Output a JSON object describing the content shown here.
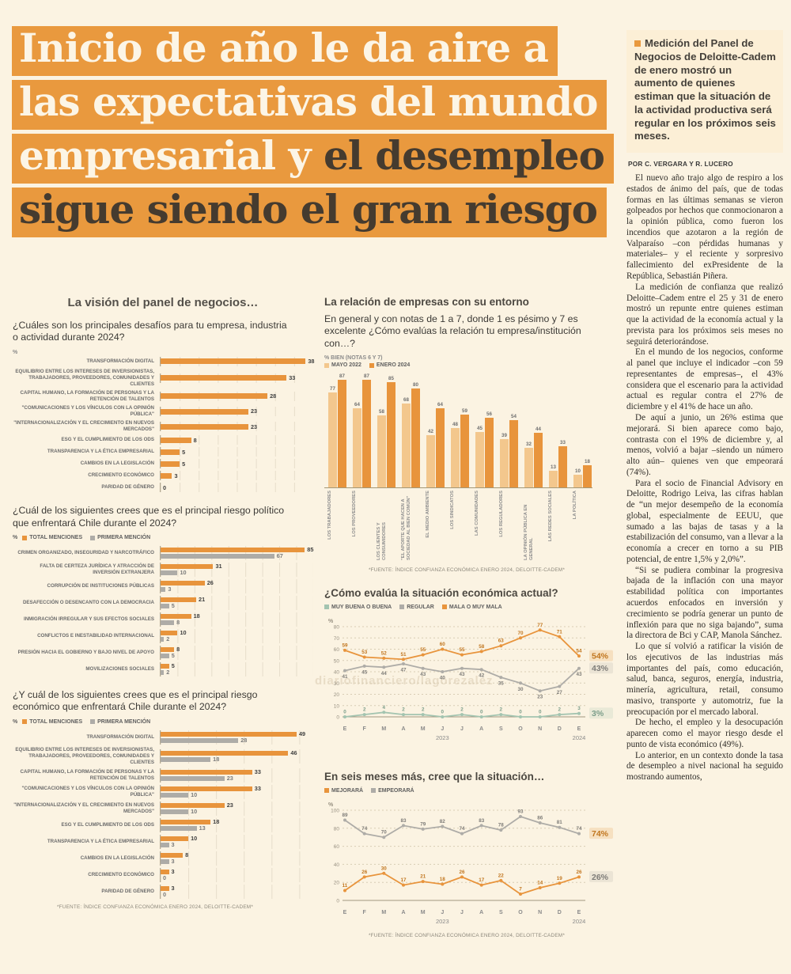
{
  "headline": {
    "line1": "Inicio de año le da aire a",
    "line2": "las expectativas del mundo",
    "line3_light": "empresarial y",
    "line3_dark": " el desempleo",
    "line4": "sigue siendo el gran riesgo"
  },
  "watermark": "diariofinanciero/lagorezalez",
  "sidebar": {
    "intro": "Medición del Panel de Negocios de Deloitte-Cadem de enero mostró un aumento de quienes estiman que la situación de la actividad productiva será regular en los próximos seis meses.",
    "byline": "POR C. VERGARA Y R. LUCERO",
    "paragraphs": [
      "El nuevo año trajo algo de respiro a los estados de ánimo del país, que de todas formas en las últimas semanas se vieron golpeados por hechos que conmocionaron a la opinión pública, como fueron los incendios que azotaron a la región de Valparaíso –con pérdidas humanas y materiales– y el reciente y sorpresivo fallecimiento del exPresidente de la República, Sebastián Piñera.",
      "La medición de confianza que realizó Deloitte–Cadem entre el 25 y 31 de enero mostró un repunte entre quienes estiman que la actividad de la economía actual y la prevista para los próximos seis meses no seguirá deteriorándose.",
      "En el mundo de los negocios, conforme al panel que incluye el indicador –con 59 representantes de empresas–, el 43% considera que el escenario para la actividad actual es regular contra el 27% de diciembre y el 41% de hace un año.",
      "De aquí a junio, un 26% estima que mejorará. Si bien aparece como bajo, contrasta con el 19% de diciembre y, al menos, volvió a bajar –siendo un número alto aún– quienes ven que empeorará (74%).",
      "Para el socio de Financial Advisory en Deloitte, Rodrigo Leiva, las cifras hablan de “un mejor desempeño de la economía global, especialmente de EEUU, que sumado a las bajas de tasas y a la estabilización del consumo, van a llevar a la economía a crecer en torno a su PIB potencial, de entre 1,5% y 2,0%”.",
      "“Si se pudiera combinar la progresiva bajada de la inflación con una mayor estabilidad política con importantes acuerdos enfocados en inversión y crecimiento se podría generar un punto de inflexión para que no siga bajando”, suma la directora de Bci y CAP, Manola Sánchez.",
      "Lo que sí volvió a ratificar la visión de los ejecutivos de las industrias más importantes del país, como educación, salud, banca, seguros, energía, industria, minería, agricultura, retail, consumo masivo, transporte y automotriz, fue la preocupación por el mercado laboral.",
      "De hecho, el empleo y la desocupación aparecen como el mayor riesgo desde el punto de vista económico (49%).",
      "Lo anterior, en un contexto donde la tasa de desempleo a nivel nacional ha seguido mostrando aumentos,"
    ]
  },
  "palette": {
    "orange": "#E8943C",
    "orange_text": "#C1761F",
    "light_orange": "#F3C78D",
    "light_orange_text": "#B98F4F",
    "gray": "#AEACA7",
    "gray_text": "#7E7C78",
    "green": "#A3C4B0",
    "green_text": "#7C9E8A",
    "headline_bg": "#E9993E",
    "page_bg": "#FBF3E2"
  },
  "chart_data": [
    {
      "id": "panel-desafios",
      "type": "bar",
      "title": "La visión del panel de negocios…",
      "question": "¿Cuáles son los principales desafíos para tu empresa, industria o actividad durante 2024?",
      "unit": "%",
      "xmax": 40,
      "grid_step": 5,
      "categories": [
        "TRANSFORMACIÓN DIGITAL",
        "EQUILIBRIO ENTRE LOS INTERESES DE INVERSIONISTAS, TRABAJADORES, PROVEEDORES, COMUNIDADES Y CLIENTES",
        "CAPITAL HUMANO, LA FORMACIÓN DE PERSONAS Y LA RETENCIÓN DE TALENTOS",
        "\"COMUNICACIONES Y LOS VÍNCULOS CON LA OPINIÓN PÚBLICA\"",
        "\"INTERNACIONALIZACIÓN Y EL CRECIMIENTO EN NUEVOS MERCADOS\"",
        "ESG Y EL CUMPLIMIENTO DE LOS ODS",
        "TRANSPARENCIA Y LA ÉTICA EMPRESARIAL",
        "CAMBIOS EN LA LEGISLACIÓN",
        "CRECIMIENTO ECONÓMICO",
        "PARIDAD DE GÉNERO"
      ],
      "values": [
        38,
        33,
        28,
        23,
        23,
        8,
        5,
        5,
        3,
        0
      ]
    },
    {
      "id": "riesgo-politico",
      "type": "bar",
      "question": "¿Cuál de los siguientes crees que es el principal riesgo político que enfrentará Chile durante el 2024?",
      "unit": "%",
      "xmax": 90,
      "grid_step": 10,
      "categories": [
        "CRIMEN ORGANIZADO, INSEGURIDAD Y NARCOTRÁFICO",
        "FALTA DE CERTEZA JURÍDICA Y ATRACCIÓN DE INVERSIÓN EXTRANJERA",
        "CORRUPCIÓN DE INSTITUCIONES PÚBLICAS",
        "DESAFECCIÓN O DESENCANTO CON LA DEMOCRACIA",
        "INMIGRACIÓN IRREGULAR Y SUS EFECTOS SOCIALES",
        "CONFLICTOS E INESTABILIDAD INTERNACIONAL",
        "PRESIÓN HACIA EL GOBIERNO Y BAJO NIVEL DE APOYO",
        "MOVILIZACIONES SOCIALES"
      ],
      "series": [
        {
          "name": "TOTAL MENCIONES",
          "values": [
            85,
            31,
            26,
            21,
            18,
            10,
            8,
            5
          ]
        },
        {
          "name": "PRIMERA MENCIÓN",
          "values": [
            67,
            10,
            3,
            5,
            8,
            2,
            5,
            2
          ]
        }
      ]
    },
    {
      "id": "riesgo-economico",
      "type": "bar",
      "question": "¿Y cuál de los siguientes crees que es el principal riesgo económico que enfrentará Chile durante el 2024?",
      "unit": "%",
      "xmax": 55,
      "grid_step": 10,
      "categories": [
        "TRANSFORMACIÓN DIGITAL",
        "EQUILIBRIO ENTRE LOS INTERESES DE INVERSIONISTAS, TRABAJADORES, PROVEEDORES, COMUNIDADES Y CLIENTES",
        "CAPITAL HUMANO, LA FORMACIÓN DE PERSONAS Y LA RETENCIÓN DE TALENTOS",
        "\"COMUNICACIONES Y LOS VÍNCULOS CON LA OPINIÓN PÚBLICA\"",
        "\"INTERNACIONALIZACIÓN Y EL CRECIMIENTO EN NUEVOS MERCADOS\"",
        "ESG Y EL CUMPLIMIENTO DE LOS ODS",
        "TRANSPARENCIA Y LA ÉTICA EMPRESARIAL",
        "CAMBIOS EN LA LEGISLACIÓN",
        "CRECIMIENTO ECONÓMICO",
        "PARIDAD DE GÉNERO"
      ],
      "series": [
        {
          "name": "TOTAL MENCIONES",
          "values": [
            49,
            46,
            33,
            33,
            23,
            18,
            10,
            8,
            3,
            3
          ]
        },
        {
          "name": "PRIMERA MENCIÓN",
          "values": [
            28,
            18,
            23,
            10,
            10,
            13,
            3,
            3,
            0,
            0
          ]
        }
      ],
      "source": "*FUENTE: ÍNDICE CONFIANZA ECONÓMICA ENERO 2024, DELOITTE-CADEM*"
    },
    {
      "id": "relacion-entorno",
      "type": "bar",
      "title": "La relación de empresas con su entorno",
      "subtitle": "En general y con notas de 1 a 7, donde 1 es pésimo y 7 es excelente ¿Cómo evalúas la relación tu empresa/institución con…?",
      "axis_note": "% BIEN (NOTAS 6 Y 7)",
      "ymax": 95,
      "categories": [
        "LOS TRABAJADORES",
        "LOS PROVEEDORES",
        "LOS CLIENTES Y CONSUMIDORES",
        "\"EL APORTE QUE HACEN A SOCIEDAD AL BIEN COMÚN\"",
        "EL MEDIO AMBIENTE",
        "LOS SINDICATOS",
        "LAS COMUNIDADES",
        "LOS REGULADORES",
        "LA OPINIÓN PÚBLICA EN GENERAL",
        "LAS REDES SOCIALES",
        "LA POLÍTICA"
      ],
      "series": [
        {
          "name": "MAYO 2022",
          "values": [
            77,
            64,
            58,
            68,
            42,
            48,
            45,
            39,
            32,
            13,
            10
          ]
        },
        {
          "name": "ENERO 2024",
          "values": [
            87,
            87,
            85,
            80,
            64,
            59,
            56,
            54,
            44,
            33,
            18
          ]
        }
      ],
      "source": "*FUENTE: ÍNDICE CONFIANZA ECONÓMICA ENERO 2024, DELOITTE-CADEM*"
    },
    {
      "id": "situacion-actual",
      "type": "line",
      "title": "¿Cómo evalúa la situación económica actual?",
      "unit": "%",
      "ylim": [
        0,
        80
      ],
      "ystep": 10,
      "x": [
        "E",
        "F",
        "M",
        "A",
        "M",
        "J",
        "J",
        "A",
        "S",
        "O",
        "N",
        "D",
        "E"
      ],
      "year_labels": [
        "2023",
        "2024"
      ],
      "series": [
        {
          "name": "MUY BUENA O BUENA",
          "color": "green",
          "label_pos": "above",
          "values": [
            0,
            2,
            4,
            2,
            2,
            0,
            2,
            0,
            2,
            0,
            0,
            2,
            3
          ],
          "end_label": "3%",
          "end_color": "green_text"
        },
        {
          "name": "REGULAR",
          "color": "gray",
          "label_pos": "below",
          "values": [
            41,
            45,
            44,
            47,
            43,
            40,
            43,
            42,
            35,
            30,
            23,
            27,
            43
          ],
          "end_label": "43%",
          "end_color": "gray_text"
        },
        {
          "name": "MALA O MUY MALA",
          "color": "orange",
          "label_pos": "above",
          "values": [
            59,
            53,
            52,
            51,
            55,
            60,
            55,
            58,
            63,
            70,
            77,
            71,
            54
          ],
          "end_label": "54%",
          "end_color": "orange_text"
        }
      ]
    },
    {
      "id": "seis-meses",
      "type": "line",
      "title": "En seis meses más, cree que la situación…",
      "unit": "%",
      "ylim": [
        0,
        100
      ],
      "ystep": 20,
      "x": [
        "E",
        "F",
        "M",
        "A",
        "M",
        "J",
        "J",
        "A",
        "S",
        "O",
        "N",
        "D",
        "E"
      ],
      "year_labels": [
        "2023",
        "2024"
      ],
      "series": [
        {
          "name": "MEJORARÁ",
          "color": "orange",
          "label_pos": "above",
          "values": [
            11,
            26,
            30,
            17,
            21,
            18,
            26,
            17,
            22,
            7,
            14,
            19,
            26
          ],
          "end_label": "26%",
          "end_color": "gray_text"
        },
        {
          "name": "EMPEORARÁ",
          "color": "gray",
          "label_pos": "above",
          "values": [
            89,
            74,
            70,
            83,
            79,
            82,
            74,
            83,
            78,
            93,
            86,
            81,
            74
          ],
          "end_label": "74%",
          "end_color": "orange_text"
        }
      ],
      "source": "*FUENTE: ÍNDICE CONFIANZA ECONÓMICA ENERO 2024, DELOITTE-CADEM*"
    }
  ]
}
